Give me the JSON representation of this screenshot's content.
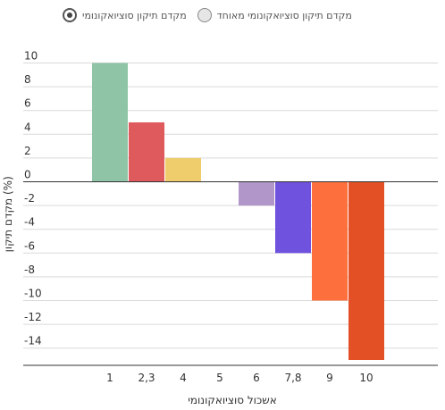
{
  "legend": {
    "option_a": "מקדם תיקון סוציואקונומי",
    "option_b": "מקדם תיקון סוציואקונומי מאוחד",
    "selected": "option_a"
  },
  "chart_data": {
    "type": "bar",
    "categories": [
      "1",
      "2,3",
      "4",
      "5",
      "6",
      "7,8",
      "9",
      "10"
    ],
    "values": [
      10,
      5,
      2,
      0,
      -2,
      -6,
      -10,
      -15
    ],
    "colors": [
      "#8fc4a7",
      "#de5a5d",
      "#efcc6c",
      "#cccccc",
      "#b196c9",
      "#6f52dd",
      "#fd6f3d",
      "#e45025"
    ],
    "xlabel": "אשכול סוציואקונומי",
    "ylabel": "מקדם תיקון (%)",
    "ylim": [
      -15.5,
      10
    ],
    "yticks": [
      10,
      8,
      6,
      4,
      2,
      0,
      -2,
      -4,
      -6,
      -8,
      -10,
      -12,
      -14
    ],
    "grid": true
  }
}
